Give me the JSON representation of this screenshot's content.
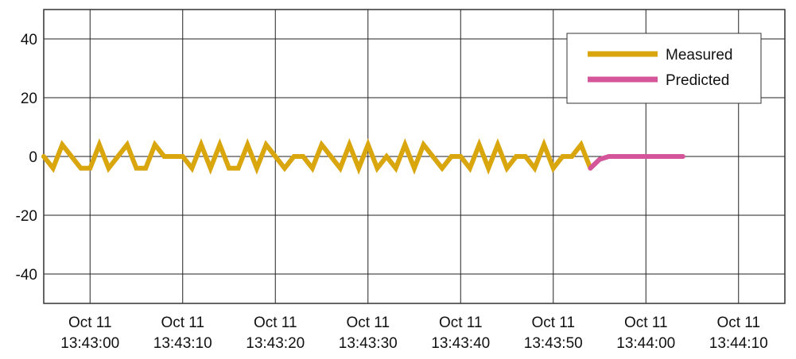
{
  "chart_data": {
    "type": "line",
    "ylim": [
      -50,
      50
    ],
    "yticks": [
      -40,
      -20,
      0,
      20,
      40
    ],
    "xlim": [
      "Oct 11 13:42:55",
      "Oct 11 13:44:15"
    ],
    "xticks": [
      "Oct 11 13:43:00",
      "Oct 11 13:43:10",
      "Oct 11 13:43:20",
      "Oct 11 13:43:30",
      "Oct 11 13:43:40",
      "Oct 11 13:43:50",
      "Oct 11 13:44:00",
      "Oct 11 13:44:10"
    ],
    "grid": true,
    "legend": "top-right",
    "series": [
      {
        "name": "Measured",
        "color": "#d9a60e",
        "x": [
          "Oct 11 13:42:55",
          "Oct 11 13:42:56",
          "Oct 11 13:42:57",
          "Oct 11 13:42:58",
          "Oct 11 13:42:59",
          "Oct 11 13:43:00",
          "Oct 11 13:43:01",
          "Oct 11 13:43:02",
          "Oct 11 13:43:03",
          "Oct 11 13:43:04",
          "Oct 11 13:43:05",
          "Oct 11 13:43:06",
          "Oct 11 13:43:07",
          "Oct 11 13:43:08",
          "Oct 11 13:43:09",
          "Oct 11 13:43:10",
          "Oct 11 13:43:11",
          "Oct 11 13:43:12",
          "Oct 11 13:43:13",
          "Oct 11 13:43:14",
          "Oct 11 13:43:15",
          "Oct 11 13:43:16",
          "Oct 11 13:43:17",
          "Oct 11 13:43:18",
          "Oct 11 13:43:19",
          "Oct 11 13:43:20",
          "Oct 11 13:43:21",
          "Oct 11 13:43:22",
          "Oct 11 13:43:23",
          "Oct 11 13:43:24",
          "Oct 11 13:43:25",
          "Oct 11 13:43:26",
          "Oct 11 13:43:27",
          "Oct 11 13:43:28",
          "Oct 11 13:43:29",
          "Oct 11 13:43:30",
          "Oct 11 13:43:31",
          "Oct 11 13:43:32",
          "Oct 11 13:43:33",
          "Oct 11 13:43:34",
          "Oct 11 13:43:35",
          "Oct 11 13:43:36",
          "Oct 11 13:43:37",
          "Oct 11 13:43:38",
          "Oct 11 13:43:39",
          "Oct 11 13:43:40",
          "Oct 11 13:43:41",
          "Oct 11 13:43:42",
          "Oct 11 13:43:43",
          "Oct 11 13:43:44",
          "Oct 11 13:43:45",
          "Oct 11 13:43:46",
          "Oct 11 13:43:47",
          "Oct 11 13:43:48",
          "Oct 11 13:43:49",
          "Oct 11 13:43:50",
          "Oct 11 13:43:51",
          "Oct 11 13:43:52",
          "Oct 11 13:43:53",
          "Oct 11 13:43:54"
        ],
        "values": [
          0,
          -4,
          4,
          0,
          -4,
          -4,
          4,
          -4,
          0,
          4,
          -4,
          -4,
          4,
          0,
          0,
          0,
          -4,
          4,
          -4,
          4,
          -4,
          -4,
          4,
          -4,
          4,
          0,
          -4,
          0,
          0,
          -4,
          4,
          0,
          -4,
          4,
          -4,
          4,
          -4,
          0,
          -4,
          4,
          -4,
          4,
          0,
          -4,
          0,
          0,
          -4,
          4,
          -4,
          4,
          -4,
          0,
          0,
          -4,
          4,
          -4,
          0,
          0,
          4,
          -4
        ]
      },
      {
        "name": "Predicted",
        "color": "#d4559a",
        "x": [
          "Oct 11 13:43:54",
          "Oct 11 13:43:55",
          "Oct 11 13:43:56",
          "Oct 11 13:43:57",
          "Oct 11 13:43:58",
          "Oct 11 13:43:59",
          "Oct 11 13:44:00",
          "Oct 11 13:44:01",
          "Oct 11 13:44:02",
          "Oct 11 13:44:03",
          "Oct 11 13:44:04"
        ],
        "values": [
          -4,
          -1,
          0,
          0,
          0,
          0,
          0,
          0,
          0,
          0,
          0
        ]
      }
    ]
  }
}
